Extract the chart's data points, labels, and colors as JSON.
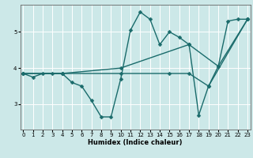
{
  "xlabel": "Humidex (Indice chaleur)",
  "bg_color": "#cce8e8",
  "grid_color": "#ffffff",
  "line_color": "#1a6b6b",
  "markersize": 2.5,
  "linewidth": 1.0,
  "series1": [
    [
      0,
      3.85
    ],
    [
      1,
      3.75
    ],
    [
      2,
      3.85
    ],
    [
      3,
      3.85
    ],
    [
      4,
      3.85
    ],
    [
      5,
      3.6
    ],
    [
      6,
      3.5
    ],
    [
      7,
      3.1
    ],
    [
      8,
      2.65
    ],
    [
      9,
      2.65
    ],
    [
      10,
      3.7
    ],
    [
      11,
      5.05
    ],
    [
      12,
      5.55
    ],
    [
      13,
      5.35
    ],
    [
      14,
      4.65
    ],
    [
      15,
      5.0
    ],
    [
      16,
      4.85
    ],
    [
      17,
      4.65
    ],
    [
      18,
      2.7
    ],
    [
      19,
      3.5
    ],
    [
      20,
      4.05
    ],
    [
      21,
      5.3
    ],
    [
      22,
      5.35
    ],
    [
      23,
      5.35
    ]
  ],
  "series2": [
    [
      0,
      3.85
    ],
    [
      4,
      3.85
    ],
    [
      10,
      3.85
    ],
    [
      15,
      3.85
    ],
    [
      17,
      3.85
    ],
    [
      19,
      3.5
    ],
    [
      23,
      5.35
    ]
  ],
  "series3": [
    [
      0,
      3.85
    ],
    [
      4,
      3.85
    ],
    [
      10,
      4.0
    ],
    [
      17,
      4.65
    ],
    [
      20,
      4.05
    ],
    [
      23,
      5.35
    ]
  ],
  "xlim": [
    -0.3,
    23.3
  ],
  "ylim": [
    2.3,
    5.75
  ],
  "xticks": [
    0,
    1,
    2,
    3,
    4,
    5,
    6,
    7,
    8,
    9,
    10,
    11,
    12,
    13,
    14,
    15,
    16,
    17,
    18,
    19,
    20,
    21,
    22,
    23
  ],
  "yticks": [
    3,
    4,
    5
  ]
}
